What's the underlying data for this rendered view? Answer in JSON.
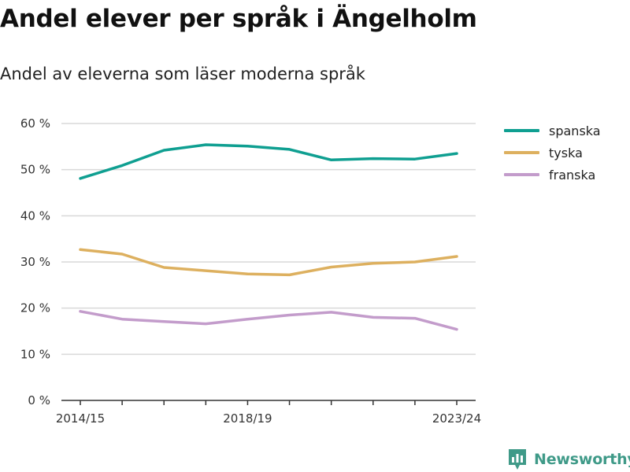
{
  "header": {
    "title": "Andel elever per språk i Ängelholm",
    "subtitle": "Andel av eleverna som läser moderna språk"
  },
  "brand": {
    "name": "Newsworthy",
    "color": "#3f9a88"
  },
  "chart_data": {
    "type": "line",
    "title": "Andel elever per språk i Ängelholm",
    "subtitle": "Andel av eleverna som läser moderna språk",
    "xlabel": "",
    "ylabel": "",
    "x": [
      "2014/15",
      "2015/16",
      "2016/17",
      "2017/18",
      "2018/19",
      "2019/20",
      "2020/21",
      "2021/22",
      "2022/23",
      "2023/24"
    ],
    "x_tick_labels": [
      "2014/15",
      "2018/19",
      "2023/24"
    ],
    "x_tick_indices": [
      0,
      4,
      9
    ],
    "y_ticks": [
      0,
      10,
      20,
      30,
      40,
      50,
      60
    ],
    "y_tick_labels": [
      "0 %",
      "10 %",
      "20 %",
      "30 %",
      "40 %",
      "50 %",
      "60 %"
    ],
    "ylim": [
      0,
      60
    ],
    "grid": "horizontal",
    "legend_position": "right",
    "series": [
      {
        "name": "spanska",
        "color": "#0f9f91",
        "values": [
          48.1,
          50.9,
          54.2,
          55.4,
          55.1,
          54.4,
          52.1,
          52.4,
          52.3,
          53.5
        ]
      },
      {
        "name": "tyska",
        "color": "#ddb05f",
        "values": [
          32.7,
          31.7,
          28.8,
          28.1,
          27.4,
          27.2,
          28.9,
          29.7,
          30.0,
          31.2
        ]
      },
      {
        "name": "franska",
        "color": "#c39ccb",
        "values": [
          19.3,
          17.6,
          17.1,
          16.6,
          17.6,
          18.5,
          19.1,
          18.0,
          17.8,
          15.4
        ]
      }
    ]
  }
}
